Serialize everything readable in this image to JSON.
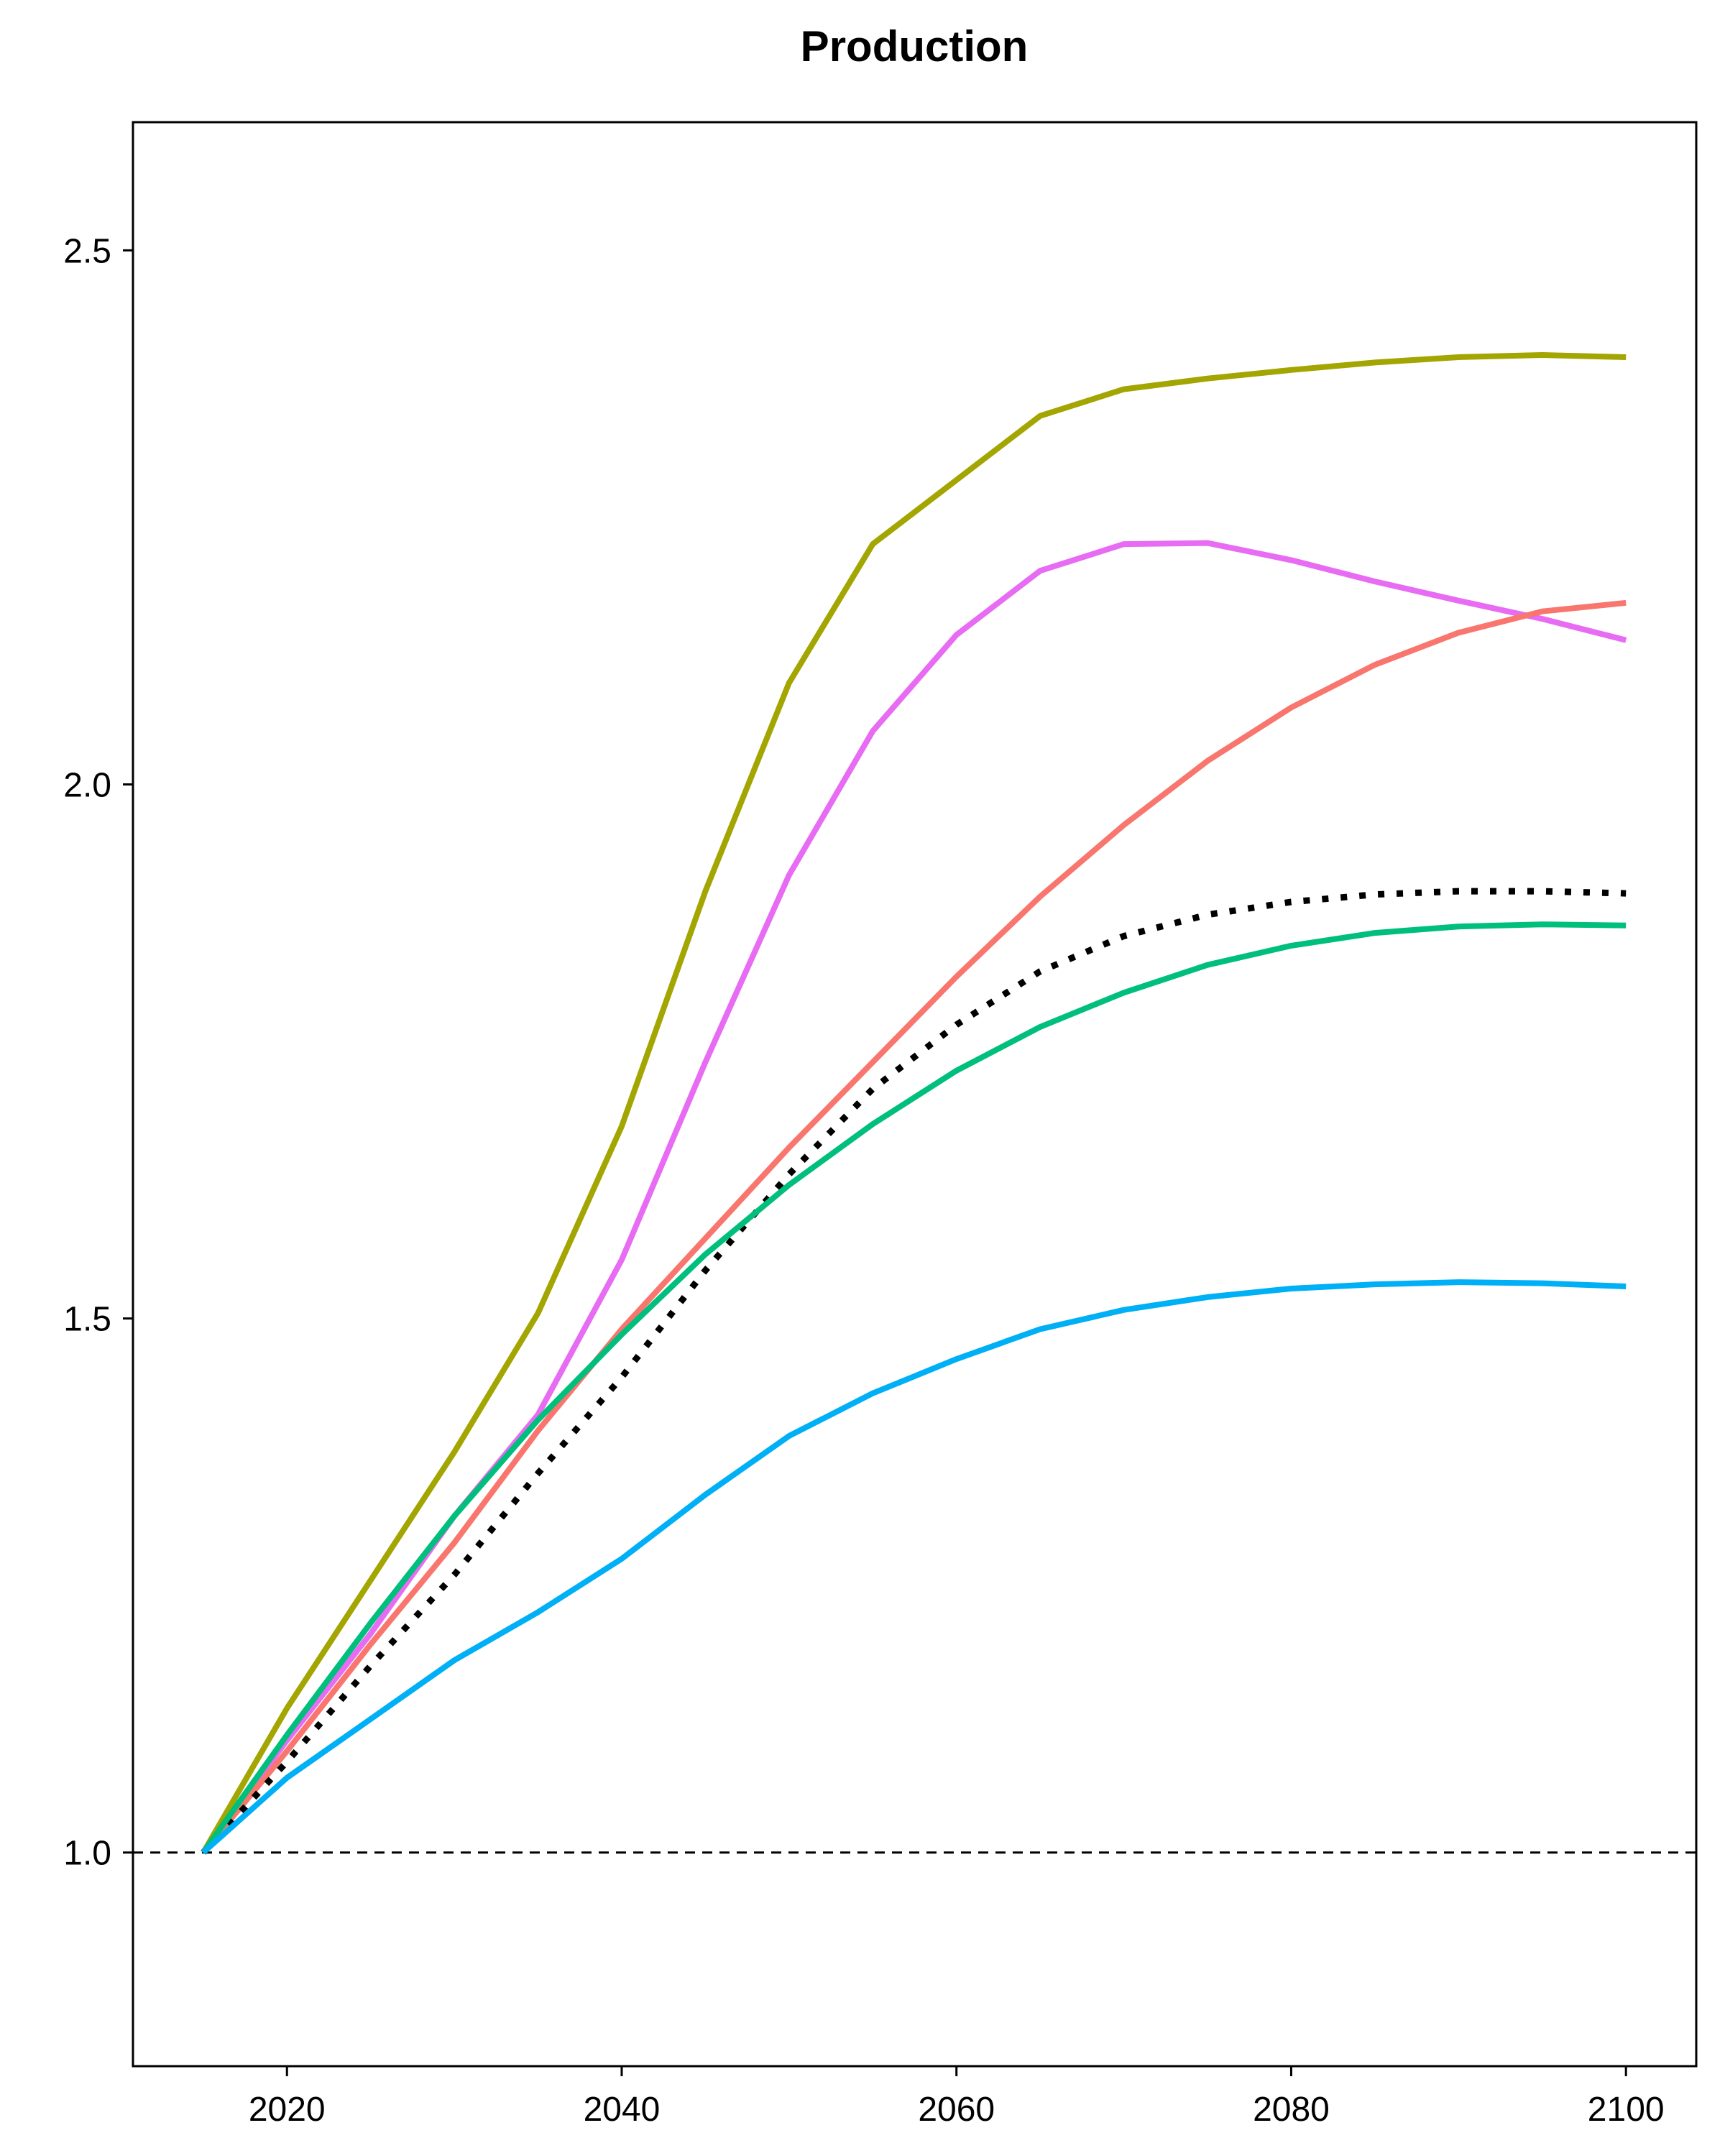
{
  "chart_data": {
    "type": "line",
    "title": "Production",
    "xlabel": "",
    "ylabel": "",
    "xlim": [
      2010.8,
      2104.2
    ],
    "ylim": [
      0.8,
      2.62
    ],
    "xticks": [
      2020,
      2040,
      2060,
      2080,
      2100
    ],
    "xtick_labels": [
      "2020",
      "2040",
      "2060",
      "2080",
      "2100"
    ],
    "yticks": [
      1.0,
      1.5,
      2.0,
      2.5
    ],
    "ytick_labels": [
      "1.0",
      "1.5",
      "2.0",
      "2.5"
    ],
    "reference_line": {
      "y": 1.0,
      "style": "dashed",
      "color": "#000000"
    },
    "grid": false,
    "legend": "none",
    "x": [
      2015,
      2020,
      2025,
      2030,
      2035,
      2040,
      2045,
      2050,
      2055,
      2060,
      2065,
      2070,
      2075,
      2080,
      2085,
      2090,
      2095,
      2100
    ],
    "series": [
      {
        "name": "series-olive",
        "color": "#A3A500",
        "style": "solid",
        "values": [
          1.0,
          1.135,
          1.255,
          1.375,
          1.505,
          1.68,
          1.9,
          2.095,
          2.225,
          2.285,
          2.345,
          2.37,
          2.38,
          2.388,
          2.395,
          2.4,
          2.402,
          2.4
        ]
      },
      {
        "name": "series-magenta",
        "color": "#E76BF3",
        "style": "solid",
        "values": [
          1.0,
          1.105,
          1.205,
          1.315,
          1.41,
          1.555,
          1.74,
          1.915,
          2.05,
          2.14,
          2.2,
          2.225,
          2.226,
          2.21,
          2.19,
          2.172,
          2.155,
          2.135
        ]
      },
      {
        "name": "series-red",
        "color": "#F8766D",
        "style": "solid",
        "values": [
          1.0,
          1.095,
          1.195,
          1.29,
          1.395,
          1.49,
          1.575,
          1.66,
          1.74,
          1.82,
          1.895,
          1.962,
          2.022,
          2.072,
          2.112,
          2.142,
          2.162,
          2.17
        ]
      },
      {
        "name": "series-average",
        "color": "#000000",
        "style": "dotted",
        "values": [
          1.0,
          1.085,
          1.175,
          1.26,
          1.355,
          1.445,
          1.545,
          1.635,
          1.715,
          1.775,
          1.825,
          1.858,
          1.878,
          1.89,
          1.897,
          1.9,
          1.9,
          1.898
        ]
      },
      {
        "name": "series-green",
        "color": "#00BF7D",
        "style": "solid",
        "values": [
          1.0,
          1.11,
          1.215,
          1.315,
          1.405,
          1.485,
          1.56,
          1.625,
          1.682,
          1.732,
          1.773,
          1.805,
          1.831,
          1.849,
          1.861,
          1.867,
          1.869,
          1.868
        ]
      },
      {
        "name": "series-blue",
        "color": "#00B0F6",
        "style": "solid",
        "values": [
          1.0,
          1.07,
          1.125,
          1.18,
          1.225,
          1.275,
          1.335,
          1.39,
          1.43,
          1.462,
          1.49,
          1.508,
          1.52,
          1.528,
          1.532,
          1.534,
          1.533,
          1.53
        ]
      }
    ]
  }
}
